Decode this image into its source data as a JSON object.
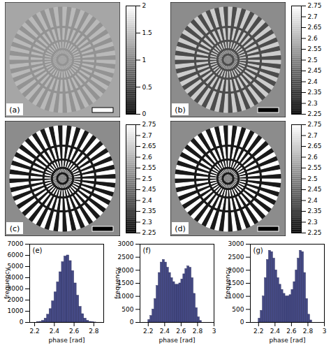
{
  "chart_data": [
    {
      "type": "image",
      "panel": "(a)",
      "clim": [
        0,
        2
      ],
      "cticks": [
        0,
        0.5,
        1,
        1.5,
        2
      ],
      "phase_levels": [
        1.15,
        1.45
      ]
    },
    {
      "type": "image",
      "panel": "(b)",
      "clim": [
        2.25,
        2.75
      ],
      "cticks": [
        2.25,
        2.3,
        2.35,
        2.4,
        2.45,
        2.5,
        2.55,
        2.6,
        2.65,
        2.7,
        2.75
      ],
      "phase_levels": [
        2.4,
        2.65
      ]
    },
    {
      "type": "image",
      "panel": "(c)",
      "clim": [
        2.25,
        2.75
      ],
      "cticks": [
        2.25,
        2.3,
        2.35,
        2.4,
        2.45,
        2.5,
        2.55,
        2.6,
        2.65,
        2.7,
        2.75
      ],
      "phase_levels": [
        2.3,
        2.75
      ]
    },
    {
      "type": "image",
      "panel": "(d)",
      "clim": [
        2.25,
        2.75
      ],
      "cticks": [
        2.25,
        2.3,
        2.35,
        2.4,
        2.45,
        2.5,
        2.55,
        2.6,
        2.65,
        2.7,
        2.75
      ],
      "phase_levels": [
        2.3,
        2.75
      ]
    },
    {
      "type": "histogram",
      "panel": "(e)",
      "color": "#454a85",
      "x_label": "phase [rad]",
      "y_label": "frequency",
      "bins": [
        2.2,
        2.225,
        2.25,
        2.275,
        2.3,
        2.325,
        2.35,
        2.375,
        2.4,
        2.425,
        2.45,
        2.475,
        2.5,
        2.525,
        2.55,
        2.575,
        2.6,
        2.625,
        2.65,
        2.675,
        2.7,
        2.725,
        2.75,
        2.775,
        2.8,
        2.825
      ],
      "counts": [
        0,
        20,
        60,
        150,
        350,
        700,
        1200,
        1900,
        2700,
        3600,
        4500,
        5400,
        5900,
        6000,
        5500,
        4600,
        3500,
        2400,
        1400,
        750,
        350,
        150,
        60,
        20,
        5
      ],
      "xlim": [
        2.15,
        2.9
      ],
      "xticks": [
        2.2,
        2.4,
        2.6,
        2.8
      ],
      "ylim": [
        0,
        7000
      ],
      "yticks": [
        0,
        1000,
        2000,
        3000,
        4000,
        5000,
        6000,
        7000
      ]
    },
    {
      "type": "histogram",
      "panel": "(f)",
      "color": "#454a85",
      "x_label": "phase [rad]",
      "y_label": "frequency",
      "bins": [
        2.2,
        2.225,
        2.25,
        2.275,
        2.3,
        2.325,
        2.35,
        2.375,
        2.4,
        2.425,
        2.45,
        2.475,
        2.5,
        2.525,
        2.55,
        2.575,
        2.6,
        2.625,
        2.65,
        2.675,
        2.7,
        2.725,
        2.75,
        2.775,
        2.8,
        2.825,
        2.85
      ],
      "counts": [
        100,
        250,
        500,
        900,
        1400,
        1900,
        2300,
        2400,
        2300,
        2100,
        1900,
        1700,
        1550,
        1450,
        1450,
        1500,
        1650,
        1850,
        2050,
        2150,
        2100,
        1700,
        1100,
        550,
        200,
        60
      ],
      "xlim": [
        2.1,
        3
      ],
      "xticks": [
        2.2,
        2.4,
        2.6,
        2.8,
        3
      ],
      "ylim": [
        0,
        3000
      ],
      "yticks": [
        0,
        500,
        1000,
        1500,
        2000,
        2500,
        3000
      ]
    },
    {
      "type": "histogram",
      "panel": "(g)",
      "color": "#454a85",
      "x_label": "phase [rad]",
      "y_label": "frequency",
      "bins": [
        2.2,
        2.225,
        2.25,
        2.275,
        2.3,
        2.325,
        2.35,
        2.375,
        2.4,
        2.425,
        2.45,
        2.475,
        2.5,
        2.525,
        2.55,
        2.575,
        2.6,
        2.625,
        2.65,
        2.675,
        2.7,
        2.725,
        2.75,
        2.775,
        2.8,
        2.825,
        2.85
      ],
      "counts": [
        150,
        450,
        1000,
        1700,
        2400,
        2750,
        2700,
        2450,
        2000,
        1700,
        1450,
        1250,
        1100,
        1000,
        1000,
        1050,
        1250,
        1550,
        2000,
        2450,
        2750,
        2700,
        1900,
        900,
        300,
        80
      ],
      "xlim": [
        2.1,
        3
      ],
      "xticks": [
        2.2,
        2.4,
        2.6,
        2.8,
        3
      ],
      "ylim": [
        0,
        3000
      ],
      "yticks": [
        0,
        500,
        1000,
        1500,
        2000,
        2500,
        3000
      ]
    }
  ]
}
